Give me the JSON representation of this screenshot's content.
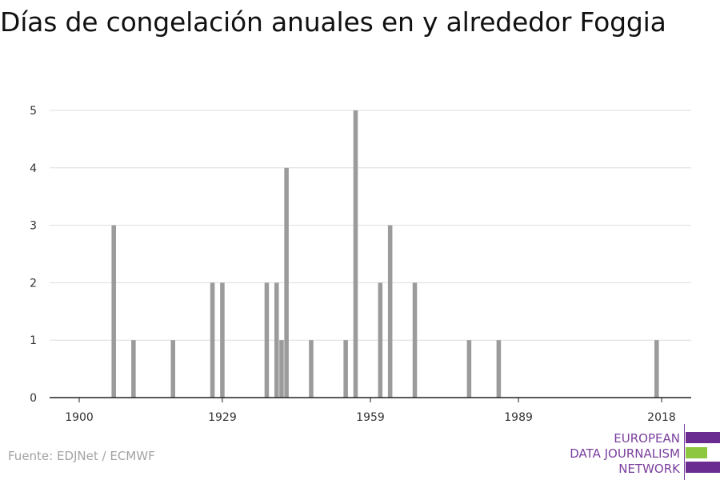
{
  "title": "Días de congelación anuales en y alrededor Foggia",
  "source": "Fuente: EDJNet / ECMWF",
  "logo": {
    "lines": [
      "EUROPEAN",
      "DATA JOURNALISM",
      "NETWORK"
    ],
    "colors": {
      "purple": "#6b2c91",
      "green": "#8dc63f"
    }
  },
  "colors": {
    "bar": "#9b9b9b",
    "grid": "#dddddd",
    "axis": "#222222"
  },
  "chart_data": {
    "type": "bar",
    "title": "Días de congelación anuales en y alrededor Foggia",
    "xlabel": "",
    "ylabel": "",
    "xlim": [
      1894,
      2024
    ],
    "ylim": [
      0,
      5
    ],
    "yticks": [
      0,
      1,
      2,
      3,
      4,
      5
    ],
    "xticks": [
      1900,
      1929,
      1959,
      1989,
      2018
    ],
    "grid": true,
    "series": [
      {
        "x": [
          1907,
          1911,
          1919,
          1927,
          1929,
          1938,
          1940,
          1941,
          1942,
          1947,
          1954,
          1956,
          1961,
          1963,
          1968,
          1979,
          1985,
          2017
        ],
        "y": [
          3,
          1,
          1,
          2,
          2,
          2,
          2,
          1,
          4,
          1,
          1,
          5,
          2,
          3,
          2,
          1,
          1,
          1
        ]
      }
    ]
  }
}
